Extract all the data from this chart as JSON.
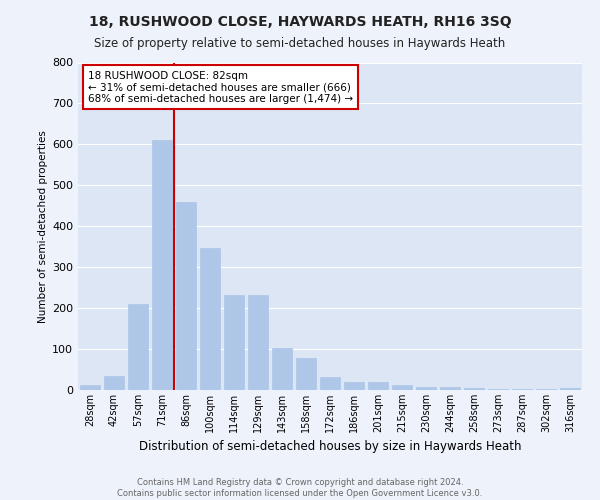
{
  "title": "18, RUSHWOOD CLOSE, HAYWARDS HEATH, RH16 3SQ",
  "subtitle": "Size of property relative to semi-detached houses in Haywards Heath",
  "xlabel": "Distribution of semi-detached houses by size in Haywards Heath",
  "ylabel": "Number of semi-detached properties",
  "bar_labels": [
    "28sqm",
    "42sqm",
    "57sqm",
    "71sqm",
    "86sqm",
    "100sqm",
    "114sqm",
    "129sqm",
    "143sqm",
    "158sqm",
    "172sqm",
    "186sqm",
    "201sqm",
    "215sqm",
    "230sqm",
    "244sqm",
    "258sqm",
    "273sqm",
    "287sqm",
    "302sqm",
    "316sqm"
  ],
  "bar_values": [
    12,
    35,
    210,
    610,
    460,
    348,
    232,
    232,
    103,
    78,
    32,
    20,
    20,
    12,
    8,
    8,
    5,
    3,
    3,
    2,
    5
  ],
  "bar_color": "#aec6e8",
  "bar_edge_color": "#aec6e8",
  "bg_color": "#dce6f5",
  "fig_bg_color": "#eef2fa",
  "grid_color": "#ffffff",
  "vline_color": "#cc0000",
  "annotation_text": "18 RUSHWOOD CLOSE: 82sqm\n← 31% of semi-detached houses are smaller (666)\n68% of semi-detached houses are larger (1,474) →",
  "annotation_box_facecolor": "#ffffff",
  "annotation_box_edgecolor": "#cc0000",
  "ylim": [
    0,
    800
  ],
  "yticks": [
    0,
    100,
    200,
    300,
    400,
    500,
    600,
    700,
    800
  ],
  "footer1": "Contains HM Land Registry data © Crown copyright and database right 2024.",
  "footer2": "Contains public sector information licensed under the Open Government Licence v3.0."
}
